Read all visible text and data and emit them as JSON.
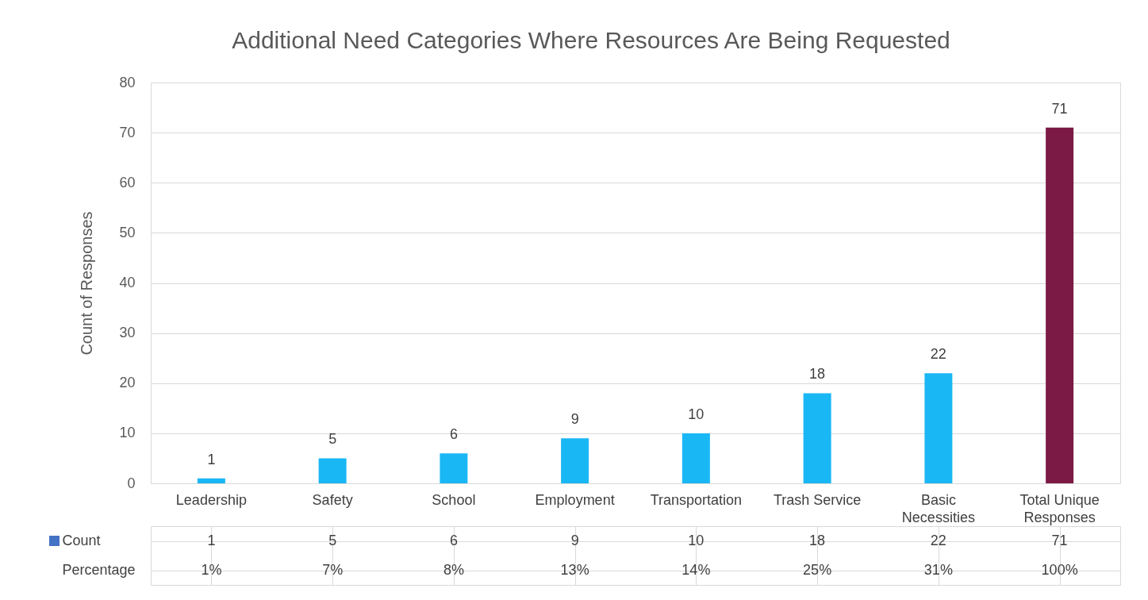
{
  "chart_data": {
    "type": "bar",
    "title": "Additional Need Categories Where Resources Are Being Requested",
    "ylabel": "Count of Responses",
    "categories": [
      "Leadership",
      "Safety",
      "School",
      "Employment",
      "Transportation",
      "Trash Service",
      "Basic Necessities",
      "Total Unique Responses"
    ],
    "values": [
      1,
      5,
      6,
      9,
      10,
      18,
      22,
      71
    ],
    "colors": [
      "#1ab7f5",
      "#1ab7f5",
      "#1ab7f5",
      "#1ab7f5",
      "#1ab7f5",
      "#1ab7f5",
      "#1ab7f5",
      "#7b1a44"
    ],
    "ylim": [
      0,
      80
    ],
    "yticks": [
      0,
      10,
      20,
      30,
      40,
      50,
      60,
      70,
      80
    ],
    "grid": true,
    "value_labels": [
      "1",
      "5",
      "6",
      "9",
      "10",
      "18",
      "22",
      "71"
    ],
    "annotations": [
      "Count",
      "Percentage",
      "1",
      "5",
      "6",
      "9",
      "10",
      "18",
      "22",
      "71",
      "1%",
      "7%",
      "8%",
      "13%",
      "14%",
      "25%",
      "31%",
      "100%"
    ]
  }
}
